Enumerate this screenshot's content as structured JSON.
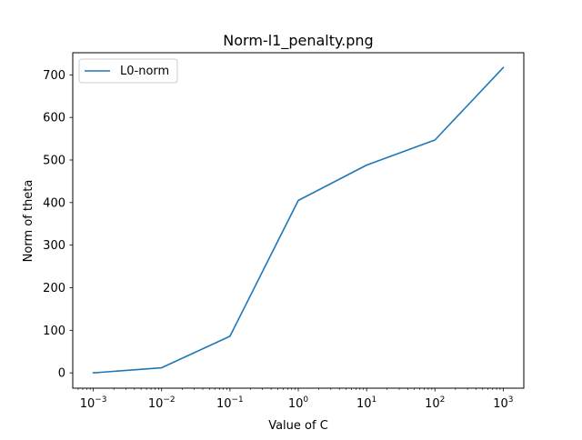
{
  "chart_data": {
    "type": "line",
    "title": "Norm-l1_penalty.png",
    "xlabel": "Value of C",
    "ylabel": "Norm of theta",
    "xscale": "log",
    "xlim": [
      0.0005,
      2000
    ],
    "ylim": [
      -36,
      752
    ],
    "grid": false,
    "legend_position": "top-left",
    "x_ticks": [
      {
        "value": 0.001,
        "base": "10",
        "exponent": "−3"
      },
      {
        "value": 0.01,
        "base": "10",
        "exponent": "−2"
      },
      {
        "value": 0.1,
        "base": "10",
        "exponent": "−1"
      },
      {
        "value": 1,
        "base": "10",
        "exponent": "0"
      },
      {
        "value": 10,
        "base": "10",
        "exponent": "1"
      },
      {
        "value": 100,
        "base": "10",
        "exponent": "2"
      },
      {
        "value": 1000,
        "base": "10",
        "exponent": "3"
      }
    ],
    "y_ticks": [
      0,
      100,
      200,
      300,
      400,
      500,
      600,
      700
    ],
    "series": [
      {
        "name": "L0-norm",
        "color": "#1f77b4",
        "x": [
          0.001,
          0.01,
          0.1,
          1,
          10,
          100,
          1000
        ],
        "y": [
          0,
          12,
          86,
          405,
          488,
          547,
          717
        ]
      }
    ]
  }
}
